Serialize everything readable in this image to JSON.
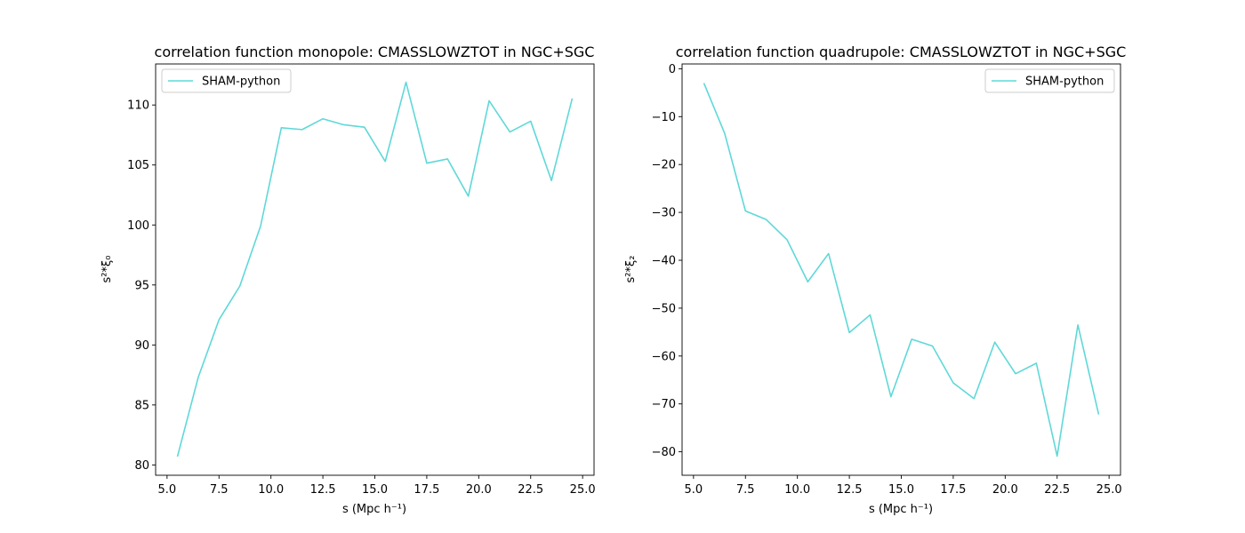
{
  "chart_data": [
    {
      "type": "line",
      "title": "correlation function monopole: CMASSLOWZTOT in NGC+SGC",
      "xlabel": "s (Mpc h⁻¹)",
      "ylabel": "s²*ξ₀",
      "xlim": [
        4.45,
        25.55
      ],
      "ylim": [
        79.14,
        113.42
      ],
      "xticks": [
        5.0,
        7.5,
        10.0,
        12.5,
        15.0,
        17.5,
        20.0,
        22.5,
        25.0
      ],
      "xtick_labels": [
        "5.0",
        "7.5",
        "10.0",
        "12.5",
        "15.0",
        "17.5",
        "20.0",
        "22.5",
        "25.0"
      ],
      "yticks": [
        80,
        85,
        90,
        95,
        100,
        105,
        110
      ],
      "ytick_labels": [
        "80",
        "85",
        "90",
        "95",
        "100",
        "105",
        "110"
      ],
      "legend": "top-left",
      "grid": false,
      "series": [
        {
          "name": "SHAM-python",
          "color": "#5fd8d8",
          "x": [
            5.5,
            6.5,
            7.5,
            8.5,
            9.5,
            10.5,
            11.5,
            12.5,
            13.5,
            14.5,
            15.5,
            16.5,
            17.5,
            18.5,
            19.5,
            20.5,
            21.5,
            22.5,
            23.5,
            24.5
          ],
          "y": [
            80.7,
            87.3,
            92.1,
            94.9,
            99.9,
            108.1,
            107.95,
            108.85,
            108.35,
            108.15,
            105.3,
            111.9,
            105.15,
            105.5,
            102.4,
            110.35,
            107.75,
            108.65,
            103.7,
            110.55
          ]
        }
      ]
    },
    {
      "type": "line",
      "title": "correlation function quadrupole: CMASSLOWZTOT in NGC+SGC",
      "xlabel": "s (Mpc h⁻¹)",
      "ylabel": "s²*ξ₂",
      "xlim": [
        4.45,
        25.55
      ],
      "ylim": [
        -84.9,
        1.0
      ],
      "xticks": [
        5.0,
        7.5,
        10.0,
        12.5,
        15.0,
        17.5,
        20.0,
        22.5,
        25.0
      ],
      "xtick_labels": [
        "5.0",
        "7.5",
        "10.0",
        "12.5",
        "15.0",
        "17.5",
        "20.0",
        "22.5",
        "25.0"
      ],
      "yticks": [
        -80,
        -70,
        -60,
        -50,
        -40,
        -30,
        -20,
        -10,
        0
      ],
      "ytick_labels": [
        "−80",
        "−70",
        "−60",
        "−50",
        "−40",
        "−30",
        "−20",
        "−10",
        "0"
      ],
      "legend": "top-right",
      "grid": false,
      "series": [
        {
          "name": "SHAM-python",
          "color": "#5fd8d8",
          "x": [
            5.5,
            6.5,
            7.5,
            8.5,
            9.5,
            10.5,
            11.5,
            12.5,
            13.5,
            14.5,
            15.5,
            16.5,
            17.5,
            18.5,
            19.5,
            20.5,
            21.5,
            22.5,
            23.5,
            24.5
          ],
          "y": [
            -3.0,
            -13.5,
            -29.7,
            -31.5,
            -35.7,
            -44.5,
            -38.6,
            -55.1,
            -51.4,
            -68.5,
            -56.5,
            -57.9,
            -65.6,
            -68.9,
            -57.1,
            -63.7,
            -61.5,
            -80.9,
            -53.5,
            -72.2
          ]
        }
      ]
    }
  ]
}
